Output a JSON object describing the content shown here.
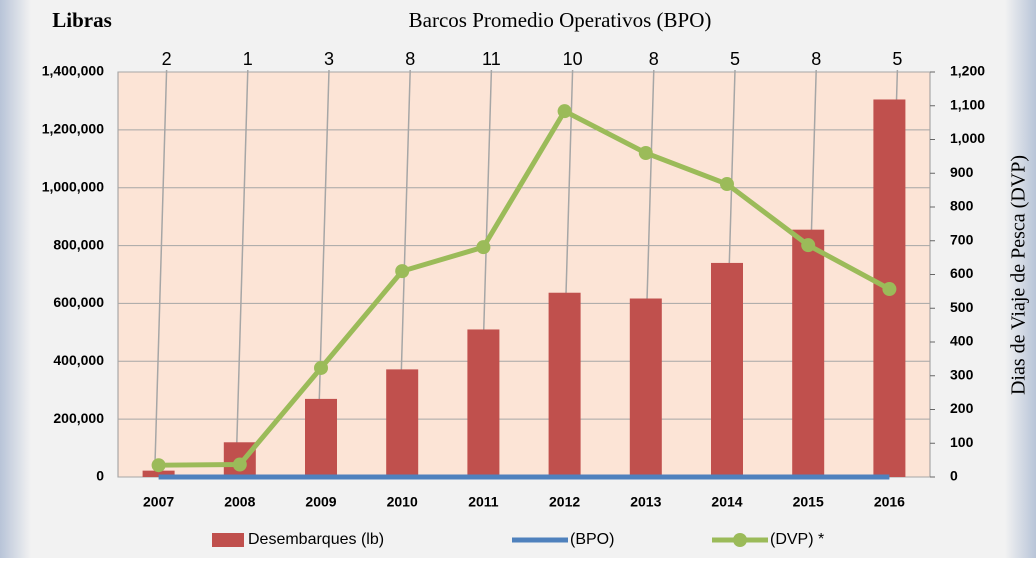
{
  "chart_data": {
    "type": "bar",
    "y_title": "Libras",
    "top_title": "Barcos Promedio Operativos (BPO)",
    "y2_title": "Dias de Viaje de Pesca (DVP)",
    "categories": [
      "2007",
      "2008",
      "2009",
      "2010",
      "2011",
      "2012",
      "2013",
      "2014",
      "2015",
      "2016"
    ],
    "series": [
      {
        "name": "Desembarques (lb)",
        "type": "bar",
        "color": "#c0504d",
        "values": [
          22000,
          120000,
          270000,
          372000,
          510000,
          637000,
          617000,
          740000,
          855000,
          1305000
        ]
      },
      {
        "name": "(BPO)",
        "type": "line",
        "color": "#4f81bd",
        "values": [
          2,
          1,
          3,
          8,
          11,
          10,
          8,
          5,
          8,
          5
        ]
      },
      {
        "name": "(DVP) *",
        "type": "line",
        "axis": "y2",
        "color": "#9bbb59",
        "values": [
          35,
          37,
          323,
          610,
          681,
          1084,
          960,
          868,
          687,
          557
        ]
      }
    ],
    "ylim": [
      0,
      1400000
    ],
    "yticks": [
      0,
      {
        "value": 200000,
        "label": "200,000"
      },
      {
        "value": 400000,
        "label": "400,000"
      },
      {
        "value": 600000,
        "label": "600,000"
      },
      {
        "value": 800000,
        "label": "800,000"
      },
      {
        "value": 1000000,
        "label": "1,000,000"
      },
      {
        "value": 1200000,
        "label": "1,200,000"
      },
      {
        "value": 1400000,
        "label": "1,400,000"
      }
    ],
    "y2lim": [
      0,
      1200
    ],
    "y2ticks": [
      0,
      100,
      200,
      300,
      400,
      500,
      600,
      700,
      800,
      900,
      {
        "value": 1000,
        "label": "1,000"
      },
      {
        "value": 1100,
        "label": "1,100"
      },
      {
        "value": 1200,
        "label": "1,200"
      }
    ],
    "grid": true
  }
}
